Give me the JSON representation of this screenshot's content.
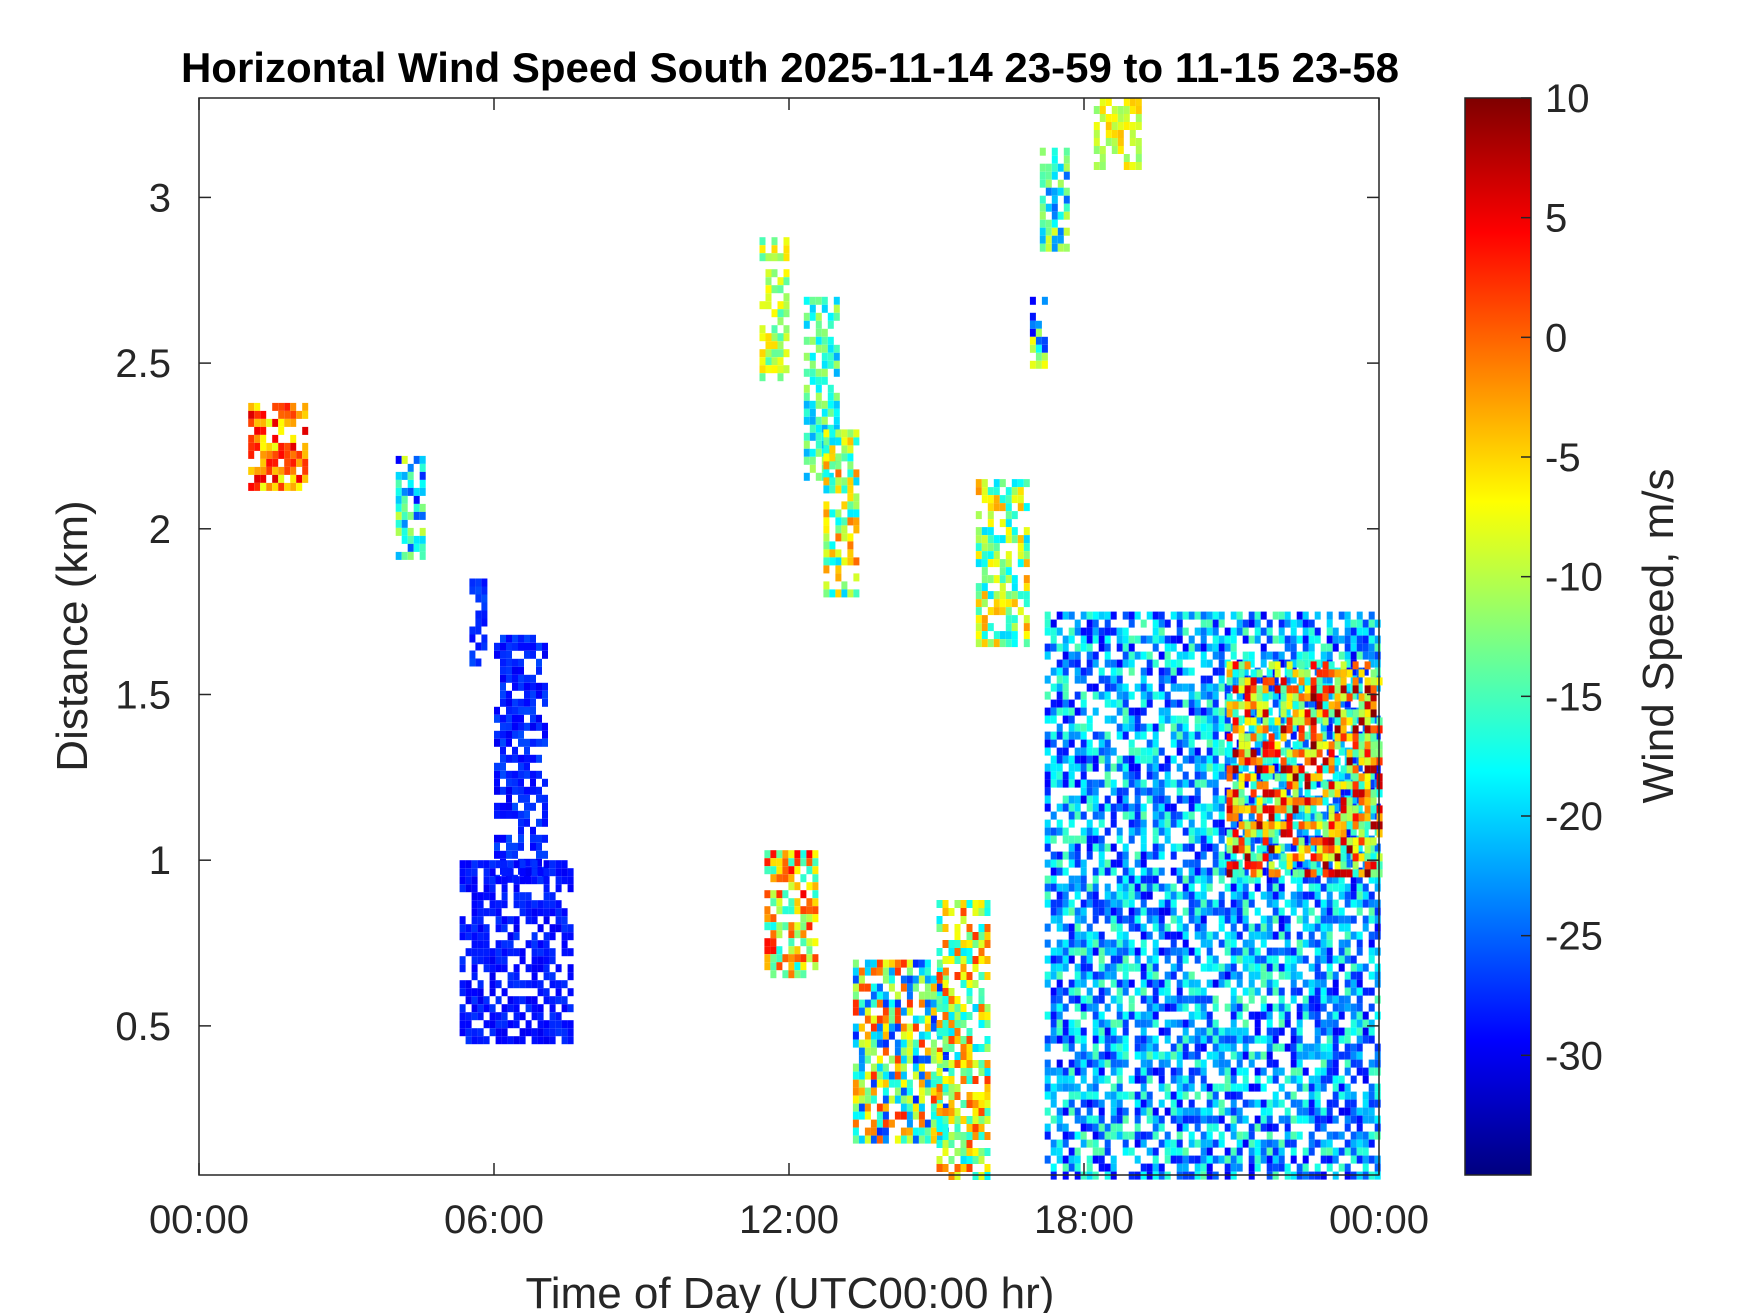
{
  "chart_data": {
    "type": "heatmap",
    "title": "Horizontal Wind Speed South 2025-11-14 23-59 to 11-15 23-58",
    "xlabel": "Time of Day (UTC00:00 hr)",
    "ylabel": "Distance (km)",
    "x_tick_labels": [
      "00:00",
      "06:00",
      "12:00",
      "18:00",
      "00:00"
    ],
    "x_ticks_hours": [
      0,
      6,
      12,
      18,
      24
    ],
    "xlim_hours": [
      0,
      24
    ],
    "y_ticks": [
      0.5,
      1,
      1.5,
      2,
      2.5,
      3
    ],
    "y_tick_labels": [
      "0.5",
      "1",
      "1.5",
      "2",
      "2.5",
      "3"
    ],
    "ylim_km": [
      0.05,
      3.3
    ],
    "colorbar": {
      "label": "Wind Speed, m/s",
      "range": [
        -35,
        10
      ],
      "ticks": [
        10,
        5,
        0,
        -5,
        -10,
        -15,
        -20,
        -25,
        -30
      ],
      "tick_labels": [
        "10",
        "5",
        "0",
        "-5",
        "-10",
        "-15",
        "-20",
        "-25",
        "-30"
      ],
      "colormap": "jet"
    },
    "blobs": [
      {
        "t": [
          1.0,
          2.1
        ],
        "z": [
          2.12,
          2.38
        ],
        "v": [
          -8,
          6
        ]
      },
      {
        "t": [
          4.0,
          4.6
        ],
        "z": [
          1.92,
          2.22
        ],
        "v": [
          -30,
          -8
        ]
      },
      {
        "t": [
          5.5,
          5.8
        ],
        "z": [
          1.6,
          1.85
        ],
        "v": [
          -29,
          -26
        ]
      },
      {
        "t": [
          6.0,
          7.0
        ],
        "z": [
          0.95,
          1.68
        ],
        "v": [
          -30,
          -26
        ]
      },
      {
        "t": [
          5.3,
          7.5
        ],
        "z": [
          0.45,
          1.0
        ],
        "v": [
          -30,
          -27
        ]
      },
      {
        "t": [
          11.4,
          11.9
        ],
        "z": [
          2.45,
          2.88
        ],
        "v": [
          -15,
          -5
        ]
      },
      {
        "t": [
          12.3,
          13.0
        ],
        "z": [
          2.15,
          2.7
        ],
        "v": [
          -22,
          -10
        ]
      },
      {
        "t": [
          12.7,
          13.4
        ],
        "z": [
          1.8,
          2.3
        ],
        "v": [
          -20,
          0
        ]
      },
      {
        "t": [
          11.5,
          12.5
        ],
        "z": [
          0.65,
          1.03
        ],
        "v": [
          -18,
          5
        ]
      },
      {
        "t": [
          13.3,
          15.2
        ],
        "z": [
          0.15,
          0.7
        ],
        "v": [
          -28,
          3
        ]
      },
      {
        "t": [
          15.0,
          16.0
        ],
        "z": [
          0.05,
          0.88
        ],
        "v": [
          -20,
          2
        ]
      },
      {
        "t": [
          15.8,
          16.8
        ],
        "z": [
          1.65,
          2.15
        ],
        "v": [
          -20,
          -2
        ]
      },
      {
        "t": [
          16.9,
          17.2
        ],
        "z": [
          2.5,
          2.7
        ],
        "v": [
          -30,
          -6
        ]
      },
      {
        "t": [
          17.1,
          17.7
        ],
        "z": [
          2.85,
          3.15
        ],
        "v": [
          -25,
          -8
        ]
      },
      {
        "t": [
          18.2,
          19.1
        ],
        "z": [
          3.1,
          3.3
        ],
        "v": [
          -12,
          -4
        ]
      },
      {
        "t": [
          17.2,
          24.0
        ],
        "z": [
          0.05,
          1.75
        ],
        "v": [
          -30,
          -14
        ]
      },
      {
        "t": [
          20.9,
          24.0
        ],
        "z": [
          0.95,
          1.6
        ],
        "v": [
          -18,
          10
        ]
      }
    ]
  }
}
